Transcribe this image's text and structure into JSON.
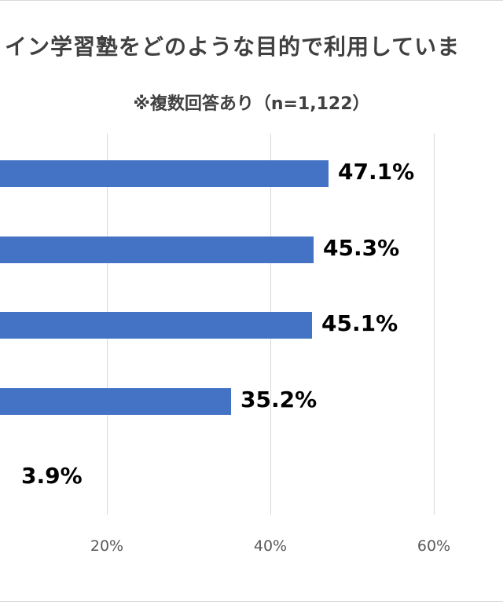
{
  "chart_data": {
    "type": "bar",
    "orientation": "horizontal",
    "title": "イン学習塾をどのような目的で利用していま",
    "subtitle": "※複数回答あり（n=1,122）",
    "values": [
      47.1,
      45.3,
      45.1,
      35.2,
      3.9
    ],
    "value_labels": [
      "47.1%",
      "45.3%",
      "45.1%",
      "35.2%",
      "3.9%"
    ],
    "x_ticks": [
      {
        "value": 20,
        "label": "20%"
      },
      {
        "value": 40,
        "label": "40%"
      },
      {
        "value": 60,
        "label": "60%"
      }
    ],
    "xlim_visible": [
      7,
      61.5
    ],
    "grid": true,
    "colors": {
      "bar": "#4472c4",
      "grid": "#d9d9d9",
      "title": "#404040",
      "tick": "#595959"
    }
  }
}
